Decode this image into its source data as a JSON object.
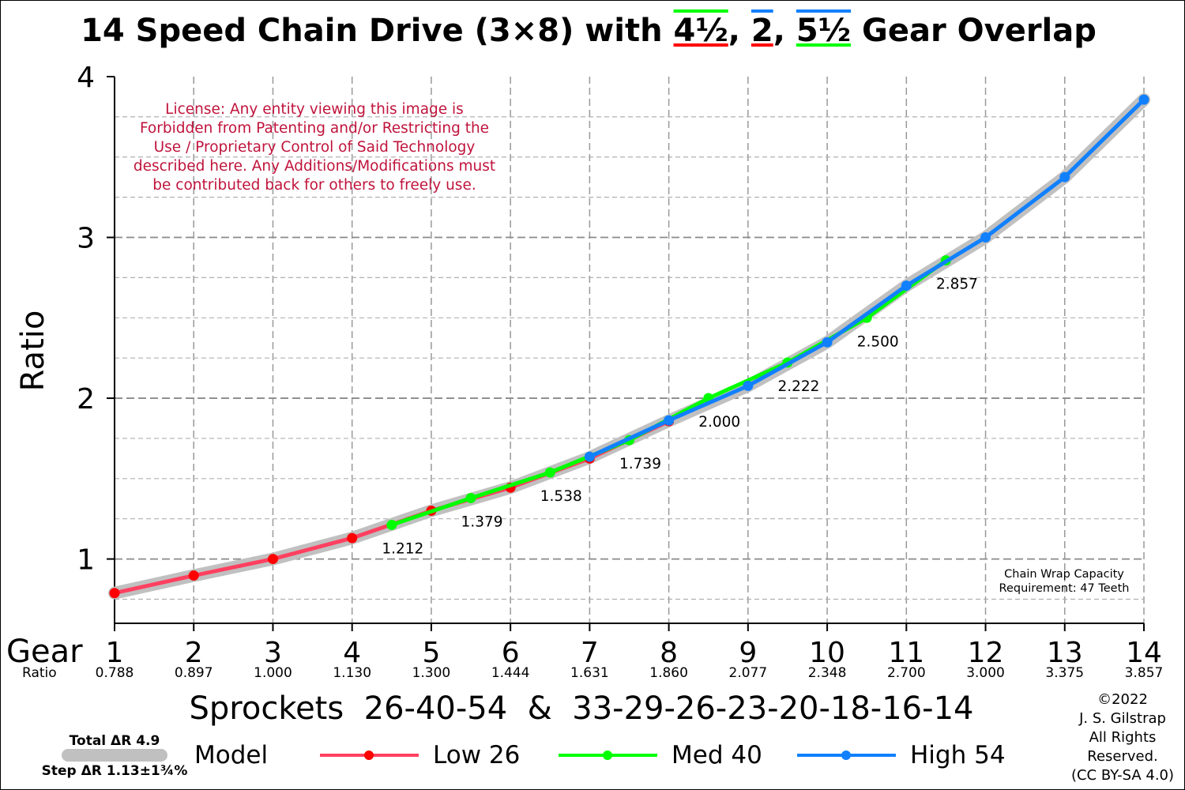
{
  "title": {
    "prefix": "14 Speed Chain Drive (3×8) with ",
    "overlap_a": "4½",
    "sep1": ", ",
    "overlap_b": "2",
    "sep2": ", ",
    "overlap_c": "5½",
    "suffix": " Gear Overlap"
  },
  "license_lines": [
    "License: Any entity viewing this image is",
    "Forbidden from Patenting and/or Restricting the",
    "Use / Proprietary Control of Said Technology",
    "described here. Any Additions/Modifications must",
    "be contributed back for others to freely use."
  ],
  "chain_wrap_lines": [
    "Chain Wrap Capacity",
    "Requirement: 47 Teeth"
  ],
  "xlabel": "Sprockets  26-40-54  &  33-29-26-23-20-18-16-14",
  "gear_label": "Gear",
  "ratio_label": "Ratio",
  "total_dr": "Total ΔR 4.9",
  "step_dr": "Step ΔR 1.13±1¾%",
  "copyright_lines": [
    "©2022",
    "J. S. Gilstrap",
    "All Rights",
    "Reserved.",
    "(CC BY-SA 4.0)"
  ],
  "colors": {
    "low": "#ff4060",
    "low_marker": "#ff0000",
    "med": "#00ff00",
    "high": "#1080ff",
    "model": "#c0c0c0",
    "license_text": "#c0143c",
    "grid": "#999999"
  },
  "chart_data": {
    "type": "line",
    "ylabel": "Ratio",
    "xlim": [
      1,
      14
    ],
    "ylim": [
      0.6,
      4.0
    ],
    "y_ticks": [
      1,
      2,
      3,
      4
    ],
    "x_ticks": [
      1,
      2,
      3,
      4,
      5,
      6,
      7,
      8,
      9,
      10,
      11,
      12,
      13,
      14
    ],
    "x_tick_ratios": [
      "0.788",
      "0.897",
      "1.000",
      "1.130",
      "1.300",
      "1.444",
      "1.631",
      "1.860",
      "2.077",
      "2.348",
      "2.700",
      "3.000",
      "3.375",
      "3.857"
    ],
    "grid": true,
    "legend_position": "bottom",
    "series": [
      {
        "name": "Model",
        "key": "model",
        "x": [
          1,
          2,
          3,
          4,
          5,
          6,
          7,
          8,
          9,
          10,
          11,
          12,
          13,
          14
        ],
        "y": [
          0.788,
          0.897,
          1.0,
          1.13,
          1.3,
          1.444,
          1.631,
          1.86,
          2.077,
          2.348,
          2.7,
          3.0,
          3.375,
          3.857
        ],
        "markers": false
      },
      {
        "name": "Low 26",
        "key": "low",
        "x": [
          1,
          2,
          3,
          4,
          5,
          6,
          7,
          8
        ],
        "y": [
          0.788,
          0.897,
          1.0,
          1.13,
          1.3,
          1.444,
          1.625,
          1.857
        ],
        "markers": true
      },
      {
        "name": "Med 40",
        "key": "med",
        "x": [
          4.5,
          5.5,
          6.5,
          7.5,
          8.5,
          9.5,
          10.5,
          11.5
        ],
        "y": [
          1.212,
          1.379,
          1.538,
          1.739,
          2.0,
          2.222,
          2.5,
          2.857
        ],
        "markers": true
      },
      {
        "name": "High 54",
        "key": "high",
        "x": [
          7,
          8,
          9,
          10,
          11,
          12,
          13,
          14
        ],
        "y": [
          1.636,
          1.862,
          2.077,
          2.348,
          2.7,
          3.0,
          3.375,
          3.857
        ],
        "markers": true
      }
    ],
    "annotations": [
      {
        "x": 4.5,
        "y": 1.212,
        "text": "1.212"
      },
      {
        "x": 5.5,
        "y": 1.379,
        "text": "1.379"
      },
      {
        "x": 6.5,
        "y": 1.538,
        "text": "1.538"
      },
      {
        "x": 7.5,
        "y": 1.739,
        "text": "1.739"
      },
      {
        "x": 8.5,
        "y": 2.0,
        "text": "2.000"
      },
      {
        "x": 9.5,
        "y": 2.222,
        "text": "2.222"
      },
      {
        "x": 10.5,
        "y": 2.5,
        "text": "2.500"
      },
      {
        "x": 11.5,
        "y": 2.857,
        "text": "2.857"
      }
    ]
  }
}
